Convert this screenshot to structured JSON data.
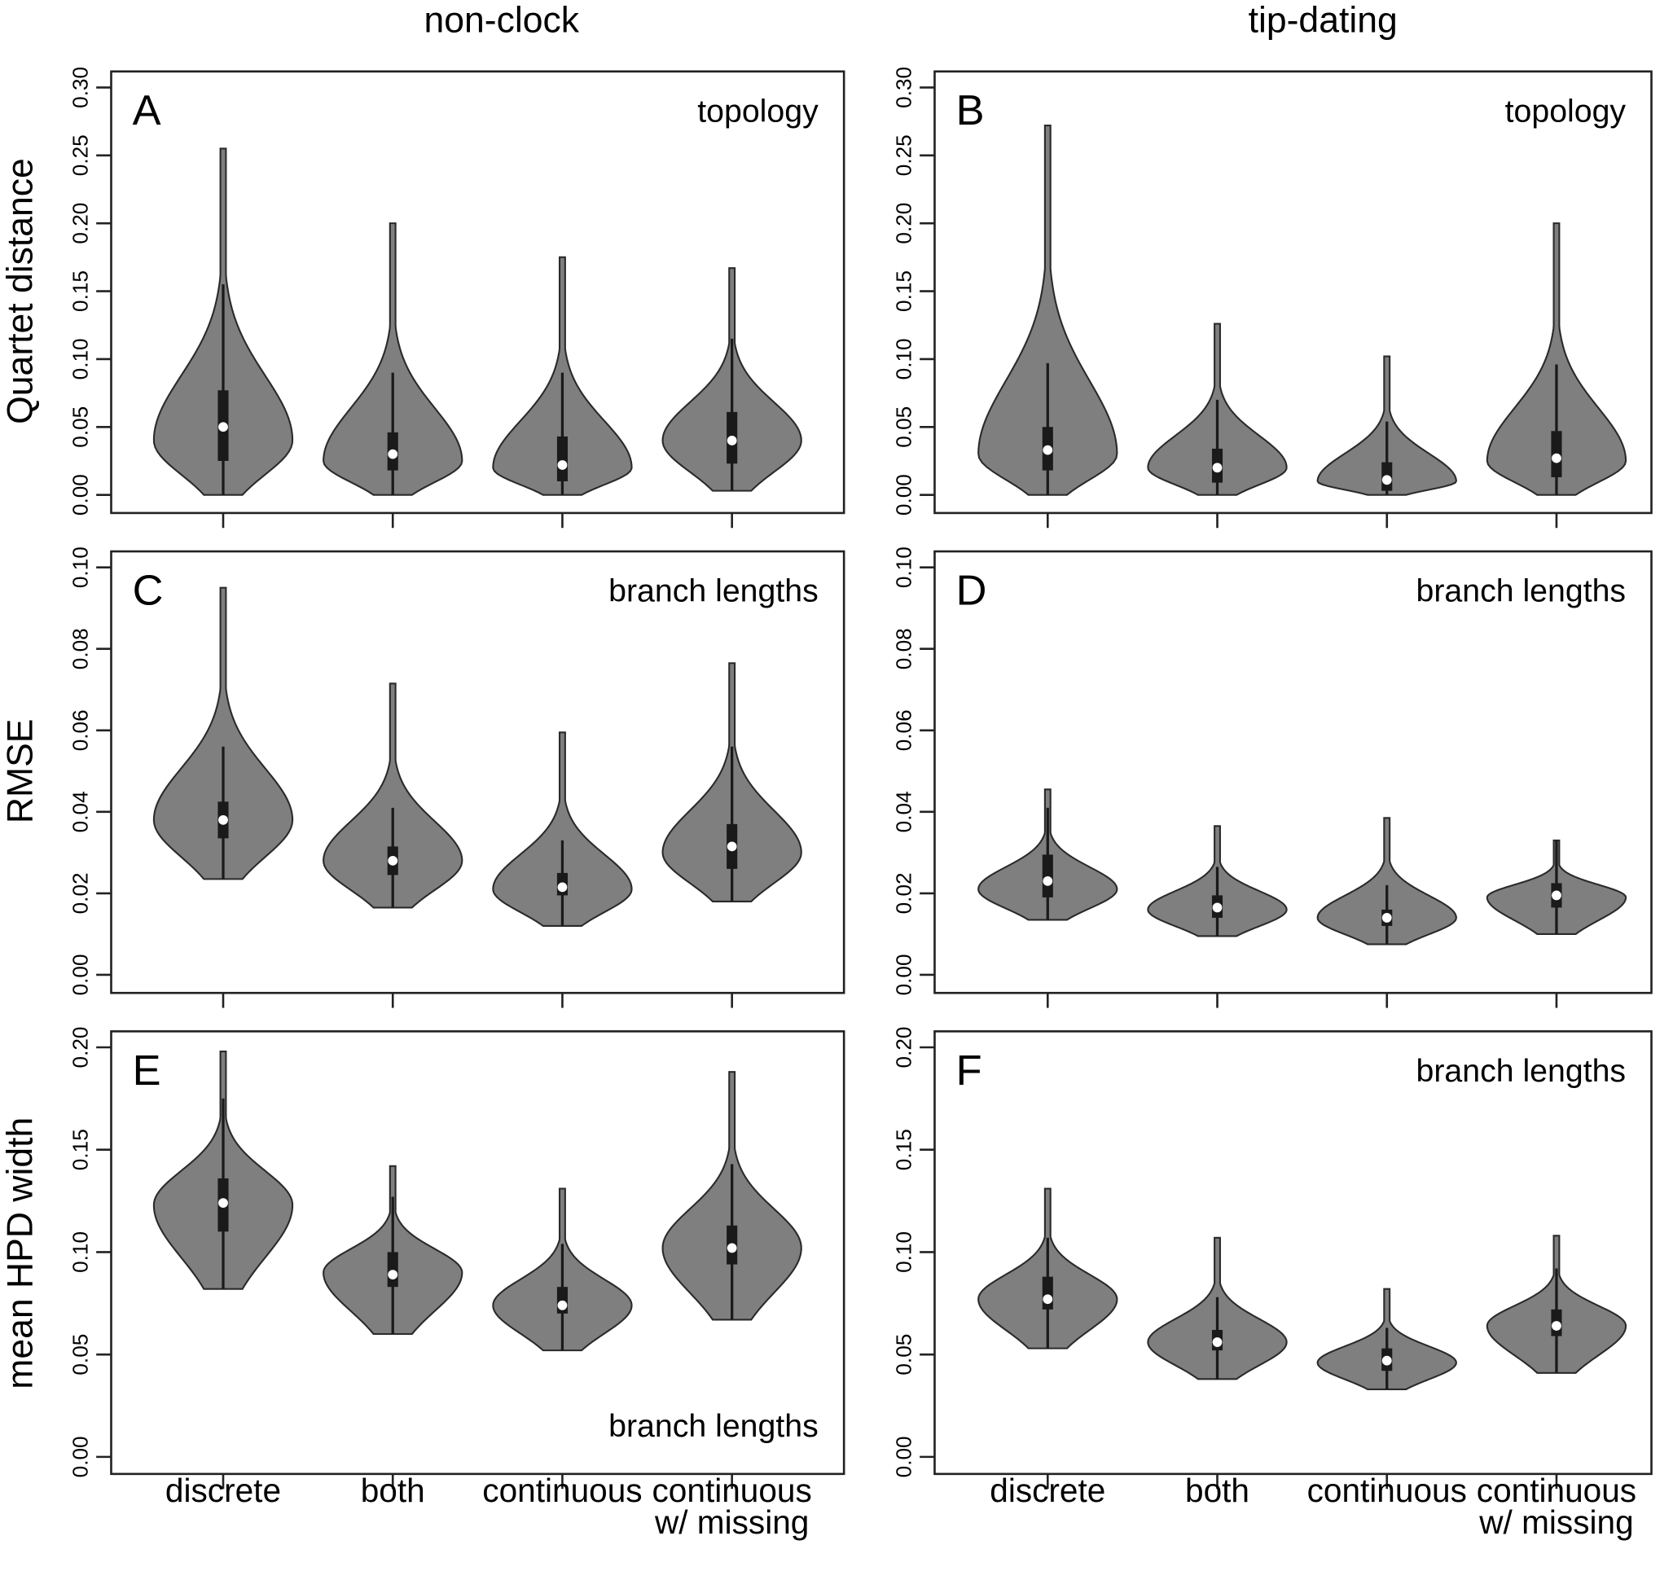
{
  "columns": [
    "non-clock",
    "tip-dating"
  ],
  "ylabels": [
    "Quartet distance",
    "RMSE",
    "mean HPD width"
  ],
  "categories": [
    [
      "discrete"
    ],
    [
      "both"
    ],
    [
      "continuous"
    ],
    [
      "continuous",
      "w/ missing"
    ]
  ],
  "colors": {
    "violin": "#7f7f7f",
    "outline": "#2a2a2a",
    "box": "#1a1a1a",
    "median": "#ffffff"
  },
  "chart_data": [
    {
      "type": "violin",
      "panel": "A",
      "annotation": "topology",
      "annotation_pos": "top-right",
      "ylabel": "Quartet distance",
      "ylim": [
        0,
        0.3
      ],
      "yticks": [
        "0.00",
        "0.05",
        "0.10",
        "0.15",
        "0.20",
        "0.25",
        "0.30"
      ],
      "ytick_values": [
        0,
        0.05,
        0.1,
        0.15,
        0.2,
        0.25,
        0.3
      ],
      "series": [
        {
          "category": "discrete",
          "min": 0,
          "max": 0.255,
          "q1": 0.025,
          "median": 0.05,
          "q3": 0.077,
          "whisker": 0.155,
          "mode": 0.04
        },
        {
          "category": "both",
          "min": 0,
          "max": 0.2,
          "q1": 0.018,
          "median": 0.03,
          "q3": 0.046,
          "whisker": 0.09,
          "mode": 0.025
        },
        {
          "category": "continuous",
          "min": 0,
          "max": 0.175,
          "q1": 0.01,
          "median": 0.022,
          "q3": 0.043,
          "whisker": 0.09,
          "mode": 0.02
        },
        {
          "category": "continuous w/ missing",
          "min": 0.003,
          "max": 0.167,
          "q1": 0.023,
          "median": 0.04,
          "q3": 0.061,
          "whisker": 0.115,
          "mode": 0.04
        }
      ]
    },
    {
      "type": "violin",
      "panel": "B",
      "annotation": "topology",
      "annotation_pos": "top-right",
      "ylabel": "",
      "ylim": [
        0,
        0.3
      ],
      "yticks": [
        "0.00",
        "0.05",
        "0.10",
        "0.15",
        "0.20",
        "0.25",
        "0.30"
      ],
      "ytick_values": [
        0,
        0.05,
        0.1,
        0.15,
        0.2,
        0.25,
        0.3
      ],
      "series": [
        {
          "category": "discrete",
          "min": 0,
          "max": 0.272,
          "q1": 0.018,
          "median": 0.033,
          "q3": 0.05,
          "whisker": 0.097,
          "mode": 0.03
        },
        {
          "category": "both",
          "min": 0,
          "max": 0.126,
          "q1": 0.009,
          "median": 0.02,
          "q3": 0.034,
          "whisker": 0.07,
          "mode": 0.02
        },
        {
          "category": "continuous",
          "min": 0,
          "max": 0.102,
          "q1": 0.003,
          "median": 0.011,
          "q3": 0.024,
          "whisker": 0.054,
          "mode": 0.01
        },
        {
          "category": "continuous w/ missing",
          "min": 0,
          "max": 0.2,
          "q1": 0.013,
          "median": 0.027,
          "q3": 0.047,
          "whisker": 0.096,
          "mode": 0.025
        }
      ]
    },
    {
      "type": "violin",
      "panel": "C",
      "annotation": "branch lengths",
      "annotation_pos": "top-right",
      "ylabel": "RMSE",
      "ylim": [
        0,
        0.1
      ],
      "yticks": [
        "0.00",
        "0.02",
        "0.04",
        "0.06",
        "0.08",
        "0.10"
      ],
      "ytick_values": [
        0,
        0.02,
        0.04,
        0.06,
        0.08,
        0.1
      ],
      "series": [
        {
          "category": "discrete",
          "min": 0.0235,
          "max": 0.095,
          "q1": 0.0335,
          "median": 0.038,
          "q3": 0.0425,
          "whisker": 0.056,
          "mode": 0.038
        },
        {
          "category": "both",
          "min": 0.0165,
          "max": 0.0715,
          "q1": 0.0245,
          "median": 0.028,
          "q3": 0.0315,
          "whisker": 0.041,
          "mode": 0.028
        },
        {
          "category": "continuous",
          "min": 0.012,
          "max": 0.0595,
          "q1": 0.0195,
          "median": 0.0215,
          "q3": 0.025,
          "whisker": 0.033,
          "mode": 0.021
        },
        {
          "category": "continuous w/ missing",
          "min": 0.018,
          "max": 0.0765,
          "q1": 0.026,
          "median": 0.0315,
          "q3": 0.037,
          "whisker": 0.056,
          "mode": 0.03
        }
      ]
    },
    {
      "type": "violin",
      "panel": "D",
      "annotation": "branch lengths",
      "annotation_pos": "top-right",
      "ylabel": "",
      "ylim": [
        0,
        0.1
      ],
      "yticks": [
        "0.00",
        "0.02",
        "0.04",
        "0.06",
        "0.08",
        "0.10"
      ],
      "ytick_values": [
        0,
        0.02,
        0.04,
        0.06,
        0.08,
        0.1
      ],
      "series": [
        {
          "category": "discrete",
          "min": 0.0135,
          "max": 0.0455,
          "q1": 0.019,
          "median": 0.023,
          "q3": 0.0295,
          "whisker": 0.041,
          "mode": 0.021
        },
        {
          "category": "both",
          "min": 0.0095,
          "max": 0.0365,
          "q1": 0.014,
          "median": 0.0165,
          "q3": 0.0195,
          "whisker": 0.0265,
          "mode": 0.016
        },
        {
          "category": "continuous",
          "min": 0.0075,
          "max": 0.0385,
          "q1": 0.012,
          "median": 0.014,
          "q3": 0.016,
          "whisker": 0.022,
          "mode": 0.014
        },
        {
          "category": "continuous w/ missing",
          "min": 0.01,
          "max": 0.033,
          "q1": 0.0165,
          "median": 0.0195,
          "q3": 0.0225,
          "whisker": 0.033,
          "mode": 0.019
        }
      ]
    },
    {
      "type": "violin",
      "panel": "E",
      "annotation": "branch lengths",
      "annotation_pos": "bottom-right",
      "ylabel": "mean HPD width",
      "ylim": [
        0,
        0.2
      ],
      "yticks": [
        "0.00",
        "0.05",
        "0.10",
        "0.15",
        "0.20"
      ],
      "ytick_values": [
        0,
        0.05,
        0.1,
        0.15,
        0.2
      ],
      "series": [
        {
          "category": "discrete",
          "min": 0.082,
          "max": 0.198,
          "q1": 0.11,
          "median": 0.124,
          "q3": 0.136,
          "whisker": 0.175,
          "mode": 0.123
        },
        {
          "category": "both",
          "min": 0.06,
          "max": 0.142,
          "q1": 0.083,
          "median": 0.089,
          "q3": 0.1,
          "whisker": 0.127,
          "mode": 0.09
        },
        {
          "category": "continuous",
          "min": 0.052,
          "max": 0.131,
          "q1": 0.07,
          "median": 0.074,
          "q3": 0.083,
          "whisker": 0.104,
          "mode": 0.074
        },
        {
          "category": "continuous w/ missing",
          "min": 0.067,
          "max": 0.188,
          "q1": 0.094,
          "median": 0.102,
          "q3": 0.113,
          "whisker": 0.143,
          "mode": 0.102
        }
      ]
    },
    {
      "type": "violin",
      "panel": "F",
      "annotation": "branch lengths",
      "annotation_pos": "top-right",
      "ylabel": "",
      "ylim": [
        0,
        0.2
      ],
      "yticks": [
        "0.00",
        "0.05",
        "0.10",
        "0.15",
        "0.20"
      ],
      "ytick_values": [
        0,
        0.05,
        0.1,
        0.15,
        0.2
      ],
      "series": [
        {
          "category": "discrete",
          "min": 0.053,
          "max": 0.131,
          "q1": 0.072,
          "median": 0.077,
          "q3": 0.088,
          "whisker": 0.107,
          "mode": 0.077
        },
        {
          "category": "both",
          "min": 0.038,
          "max": 0.107,
          "q1": 0.052,
          "median": 0.056,
          "q3": 0.062,
          "whisker": 0.078,
          "mode": 0.056
        },
        {
          "category": "continuous",
          "min": 0.033,
          "max": 0.082,
          "q1": 0.042,
          "median": 0.047,
          "q3": 0.053,
          "whisker": 0.063,
          "mode": 0.046
        },
        {
          "category": "continuous w/ missing",
          "min": 0.041,
          "max": 0.108,
          "q1": 0.059,
          "median": 0.064,
          "q3": 0.072,
          "whisker": 0.092,
          "mode": 0.064
        }
      ]
    }
  ]
}
